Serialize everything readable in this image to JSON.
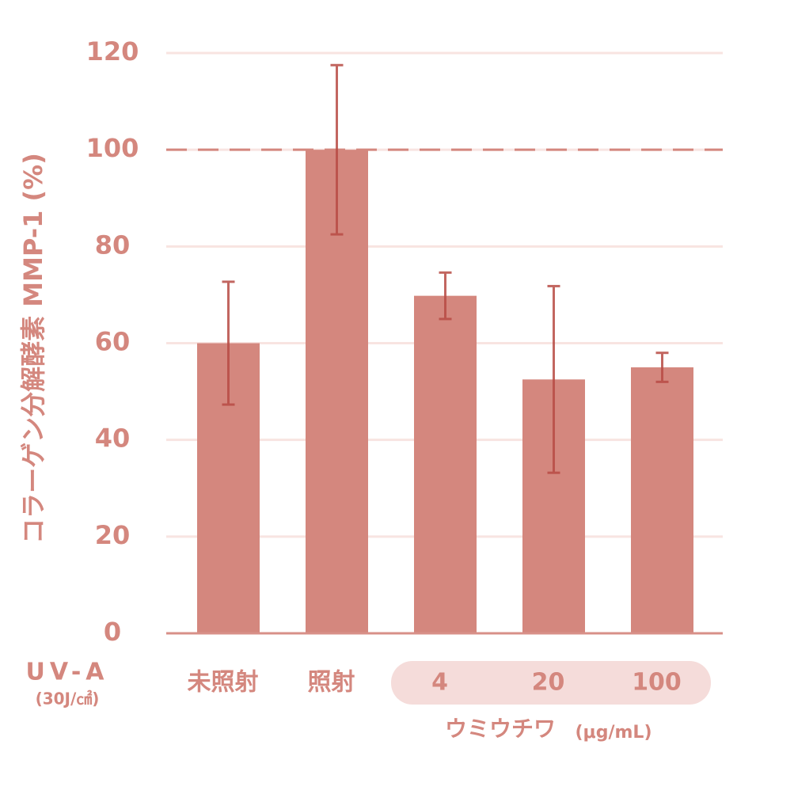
{
  "chart_data": {
    "type": "bar",
    "y_label": "コラーゲン分解酵素 MMP-1 (%)",
    "categories": [
      "未照射",
      "照射",
      "4",
      "20",
      "100"
    ],
    "values": [
      60,
      100,
      69.8,
      52.5,
      55
    ],
    "errors": [
      12.7,
      17.5,
      4.8,
      19.3,
      3
    ],
    "color": "#d4877e",
    "error_color": "#b84c45",
    "ylim": [
      0,
      120
    ],
    "yticks": [
      0,
      20,
      40,
      60,
      80,
      100,
      120
    ],
    "grid": true,
    "reference_line": 100,
    "row_label": "UV-A",
    "row_sublabel": "(30J/㎠)",
    "group": {
      "label": "ウミウチワ",
      "unit": "(μg/mL)"
    }
  }
}
